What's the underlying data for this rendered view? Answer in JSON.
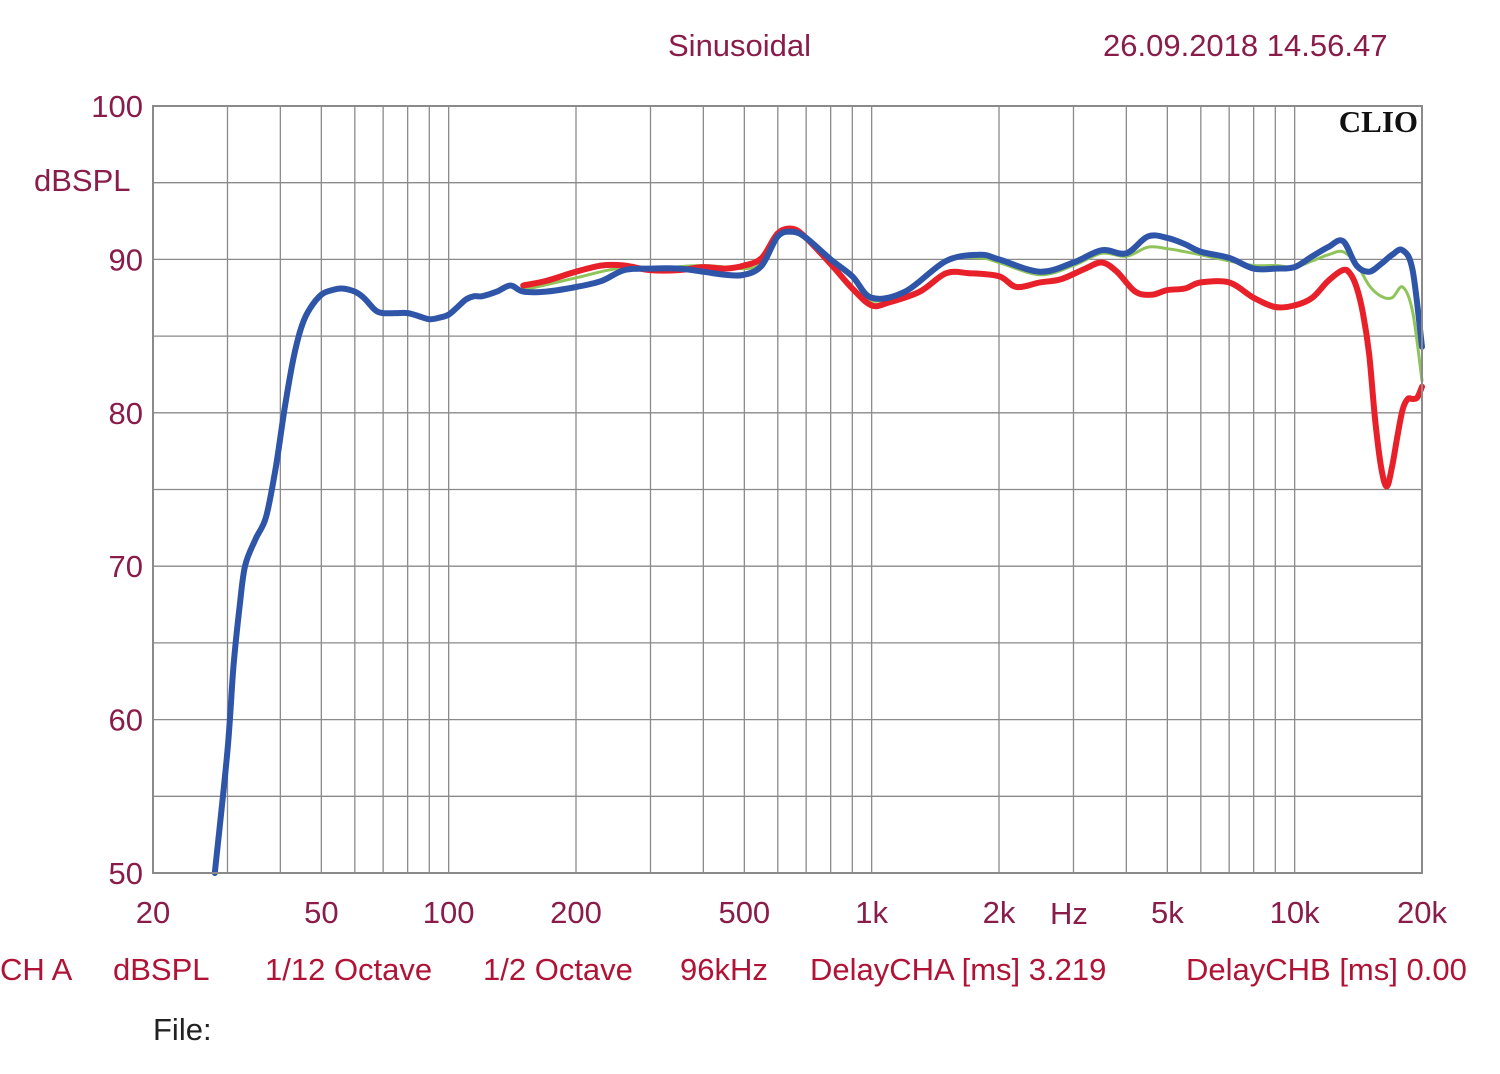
{
  "header": {
    "mode": "Sinusoidal",
    "timestamp": "26.09.2018 14.56.47",
    "brand": "CLIO"
  },
  "footer": {
    "channel": "CH A",
    "unit": "dBSPL",
    "smoothing": "1/12 Octave",
    "octave": "1/2 Octave",
    "sample_rate": "96kHz",
    "delay_cha": "DelayCHA [ms] 3.219",
    "delay_chb": "DelayCHB [ms] 0.00",
    "file_label": "File:"
  },
  "colors": {
    "axis_text": "#8a1c4a",
    "footer_text": "#b01335",
    "grid": "#8a8a8a",
    "blue": "#2f55a8",
    "red": "#e8202a",
    "green": "#8fc45a"
  },
  "chart_data": {
    "type": "line",
    "xscale": "log",
    "xlim": [
      20,
      20000
    ],
    "ylim": [
      50,
      100
    ],
    "ylabel": "dBSPL",
    "xlabel": "Hz",
    "grid": true,
    "x_ticks": [
      {
        "value": 20,
        "label": "20"
      },
      {
        "value": 50,
        "label": "50"
      },
      {
        "value": 100,
        "label": "100"
      },
      {
        "value": 200,
        "label": "200"
      },
      {
        "value": 500,
        "label": "500"
      },
      {
        "value": 1000,
        "label": "1k"
      },
      {
        "value": 2000,
        "label": "2k"
      },
      {
        "value": 5000,
        "label": "5k"
      },
      {
        "value": 10000,
        "label": "10k"
      },
      {
        "value": 20000,
        "label": "20k"
      }
    ],
    "y_ticks": [
      {
        "value": 100,
        "label": "100"
      },
      {
        "value": 90,
        "label": "90"
      },
      {
        "value": 80,
        "label": "80"
      },
      {
        "value": 70,
        "label": "70"
      },
      {
        "value": 60,
        "label": "60"
      },
      {
        "value": 50,
        "label": "50"
      }
    ],
    "series": [
      {
        "color": "#8fc45a",
        "width": 3,
        "x": [
          150,
          200,
          250,
          300,
          400,
          500,
          550,
          600,
          650,
          700,
          800,
          900,
          1000,
          1200,
          1500,
          1800,
          2000,
          2500,
          3000,
          3500,
          4000,
          4500,
          5000,
          5500,
          6000,
          7000,
          8000,
          9000,
          10000,
          11000,
          12000,
          13000,
          14000,
          15000,
          16000,
          17000,
          18000,
          19000,
          20000
        ],
        "y": [
          88.0,
          88.8,
          89.4,
          89.4,
          89.6,
          89.4,
          89.8,
          91.7,
          91.9,
          91.5,
          90.1,
          88.8,
          87.3,
          88.0,
          89.9,
          90.1,
          89.8,
          89.0,
          89.6,
          90.4,
          90.2,
          90.8,
          90.7,
          90.5,
          90.3,
          89.9,
          89.6,
          89.6,
          89.5,
          89.9,
          90.3,
          90.5,
          89.7,
          88.3,
          87.6,
          87.5,
          88.2,
          86.6,
          82.1
        ]
      },
      {
        "color": "#e8202a",
        "width": 6,
        "x": [
          150,
          170,
          200,
          230,
          260,
          300,
          350,
          400,
          450,
          500,
          550,
          600,
          650,
          700,
          800,
          900,
          1000,
          1100,
          1300,
          1500,
          1700,
          2000,
          2200,
          2500,
          2800,
          3200,
          3500,
          3800,
          4200,
          4600,
          5000,
          5500,
          6000,
          7000,
          8000,
          9000,
          10000,
          11000,
          12000,
          13000,
          13500,
          14000,
          14500,
          15000,
          15500,
          16000,
          16500,
          17000,
          17500,
          18000,
          18500,
          19000,
          19500,
          20000
        ],
        "y": [
          88.3,
          88.6,
          89.2,
          89.6,
          89.6,
          89.3,
          89.3,
          89.5,
          89.4,
          89.6,
          90.1,
          91.7,
          92.0,
          91.4,
          89.7,
          88.1,
          87.0,
          87.2,
          87.9,
          89.1,
          89.1,
          88.9,
          88.2,
          88.5,
          88.7,
          89.4,
          89.8,
          89.2,
          87.9,
          87.7,
          88.0,
          88.1,
          88.5,
          88.5,
          87.5,
          86.9,
          87.0,
          87.5,
          88.6,
          89.3,
          89.1,
          88.2,
          86.5,
          83.8,
          79.5,
          76.5,
          75.2,
          76.5,
          78.5,
          80.2,
          80.9,
          80.9,
          81.0,
          81.7
        ]
      },
      {
        "color": "#2f55a8",
        "width": 6,
        "x": [
          28,
          30,
          31,
          32,
          33,
          35,
          37,
          39,
          41,
          43,
          45,
          47,
          50,
          53,
          56,
          60,
          63,
          67,
          70,
          75,
          80,
          85,
          90,
          95,
          100,
          105,
          110,
          115,
          120,
          130,
          140,
          150,
          170,
          200,
          230,
          260,
          300,
          350,
          400,
          450,
          500,
          550,
          600,
          650,
          700,
          800,
          900,
          1000,
          1200,
          1500,
          1800,
          2000,
          2500,
          3000,
          3500,
          4000,
          4500,
          5000,
          5500,
          6000,
          7000,
          8000,
          9000,
          10000,
          11000,
          12000,
          13000,
          14000,
          15000,
          16000,
          17000,
          18000,
          19000,
          20000
        ],
        "y": [
          50.0,
          58.0,
          63.5,
          67.2,
          70.0,
          71.8,
          73.2,
          76.4,
          80.4,
          83.6,
          85.7,
          86.8,
          87.7,
          88.0,
          88.1,
          87.9,
          87.5,
          86.7,
          86.5,
          86.5,
          86.5,
          86.3,
          86.1,
          86.2,
          86.4,
          86.9,
          87.4,
          87.6,
          87.6,
          87.9,
          88.3,
          87.9,
          87.9,
          88.2,
          88.6,
          89.3,
          89.4,
          89.4,
          89.2,
          89.0,
          89.0,
          89.6,
          91.5,
          91.8,
          91.4,
          90.0,
          88.9,
          87.5,
          87.9,
          89.9,
          90.3,
          90.0,
          89.2,
          89.8,
          90.6,
          90.4,
          91.5,
          91.4,
          91.0,
          90.5,
          90.1,
          89.4,
          89.4,
          89.5,
          90.2,
          90.8,
          91.2,
          89.6,
          89.2,
          89.7,
          90.3,
          90.6,
          89.3,
          84.3
        ]
      }
    ]
  }
}
